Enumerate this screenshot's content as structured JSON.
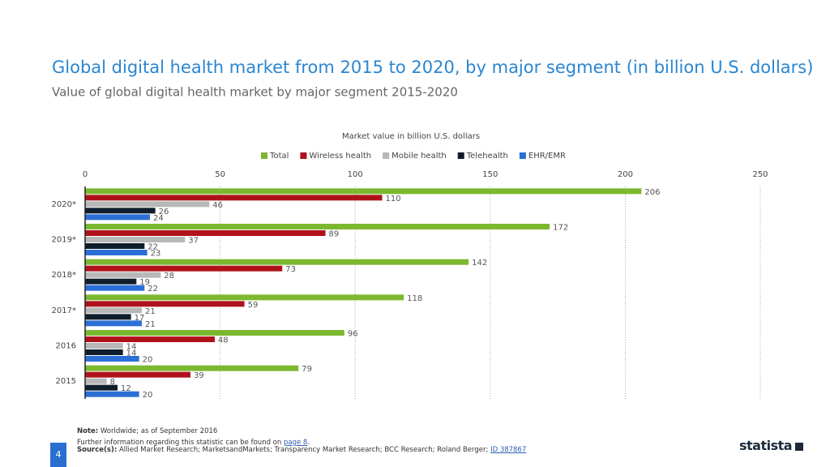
{
  "chart_data": {
    "type": "bar",
    "orientation": "horizontal",
    "title": "Global digital health market from 2015 to 2020, by major segment (in billion U.S. dollars)",
    "subtitle": "Value of global digital health market by major segment 2015-2020",
    "x_label": "Market value in billion U.S. dollars",
    "categories": [
      "2020*",
      "2019*",
      "2018*",
      "2017*",
      "2016",
      "2015"
    ],
    "series": [
      {
        "name": "Total",
        "color": "#7cb82f",
        "values": [
          206,
          172,
          142,
          118,
          96,
          79
        ]
      },
      {
        "name": "Wireless health",
        "color": "#b0121b",
        "values": [
          110,
          89,
          73,
          59,
          48,
          39
        ]
      },
      {
        "name": "Mobile health",
        "color": "#b8b8b8",
        "values": [
          46,
          37,
          28,
          21,
          14,
          8
        ]
      },
      {
        "name": "Telehealth",
        "color": "#0f1e2c",
        "values": [
          26,
          22,
          19,
          17,
          14,
          12
        ]
      },
      {
        "name": "EHR/EMR",
        "color": "#2b6fd6",
        "values": [
          24,
          23,
          22,
          21,
          20,
          20
        ]
      }
    ],
    "xlim": [
      0,
      250
    ],
    "xticks": [
      0,
      50,
      100,
      150,
      200,
      250
    ],
    "grid": true,
    "legend": "top"
  },
  "footer": {
    "note_label": "Note:",
    "note": "Worldwide; as of September 2016",
    "further_info": "Further information regarding this statistic can be found on",
    "further_link": "page 8",
    "further_end": ".",
    "source_label": "Source(s):",
    "sources": "Allied Market Research; MarketsandMarkets; Transparency Market Research; BCC Research; Roland Berger;",
    "source_link": "ID 387867",
    "page_number": "4",
    "logo": "statista"
  }
}
